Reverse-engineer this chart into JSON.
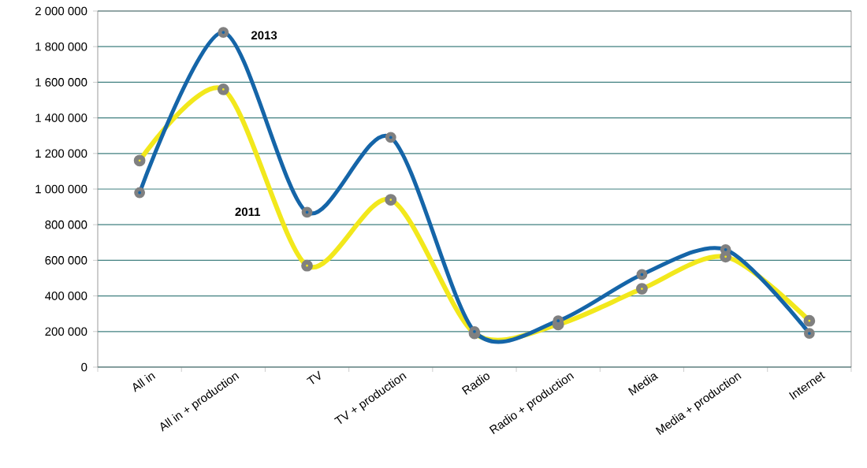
{
  "chart_data": {
    "type": "line",
    "categories": [
      "All in",
      "All in + production",
      "TV",
      "TV + production",
      "Radio",
      "Radio + production",
      "Media",
      "Media + production",
      "Internet"
    ],
    "series": [
      {
        "name": "2013",
        "color": "#1565a8",
        "values": [
          980000,
          1880000,
          870000,
          1290000,
          200000,
          260000,
          520000,
          660000,
          190000
        ]
      },
      {
        "name": "2011",
        "color": "#f2e81c",
        "values": [
          1160000,
          1560000,
          570000,
          940000,
          190000,
          240000,
          440000,
          620000,
          260000
        ]
      }
    ],
    "ylim": [
      0,
      2000000
    ],
    "yticks": [
      {
        "value": 0,
        "label": "0"
      },
      {
        "value": 200000,
        "label": "200 000"
      },
      {
        "value": 400000,
        "label": "400 000"
      },
      {
        "value": 600000,
        "label": "600 000"
      },
      {
        "value": 800000,
        "label": "800 000"
      },
      {
        "value": 1000000,
        "label": "1 000 000"
      },
      {
        "value": 1200000,
        "label": "1 200 000"
      },
      {
        "value": 1400000,
        "label": "1 400 000"
      },
      {
        "value": 1600000,
        "label": "1 600 000"
      },
      {
        "value": 1800000,
        "label": "1 800 000"
      },
      {
        "value": 2000000,
        "label": "2 000 000"
      }
    ],
    "grid": "y",
    "legend": false,
    "marker": "circle",
    "line_style": "solid"
  }
}
